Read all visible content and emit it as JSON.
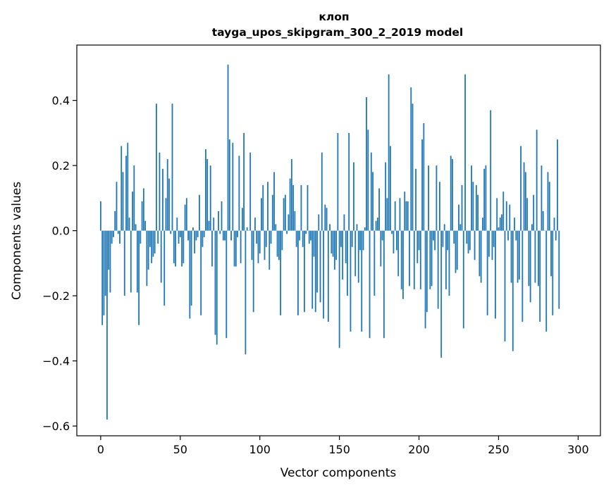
{
  "chart_data": {
    "type": "bar",
    "title": "клоп",
    "subtitle": "tayga_upos_skipgram_300_2_2019 model",
    "xlabel": "Vector components",
    "ylabel": "Components values",
    "xlim": [
      -15,
      314
    ],
    "ylim": [
      -0.63,
      0.57
    ],
    "xticks": [
      0,
      50,
      100,
      150,
      200,
      250,
      300
    ],
    "xtick_labels": [
      "0",
      "50",
      "100",
      "150",
      "200",
      "250",
      "300"
    ],
    "yticks": [
      -0.6,
      -0.4,
      -0.2,
      0.0,
      0.2,
      0.4
    ],
    "ytick_labels": [
      "−0.6",
      "−0.4",
      "−0.2",
      "0.0",
      "0.2",
      "0.4"
    ],
    "bar_color": "#1f77b4",
    "grid": false,
    "values": [
      0.09,
      -0.29,
      -0.26,
      -0.2,
      -0.58,
      -0.12,
      -0.19,
      -0.04,
      -0.02,
      0.06,
      0.15,
      -0.01,
      -0.04,
      0.26,
      0.18,
      -0.2,
      0.23,
      0.27,
      0.04,
      -0.19,
      0.12,
      0.2,
      0.02,
      -0.19,
      -0.29,
      -0.04,
      0.09,
      0.13,
      0.03,
      -0.17,
      -0.12,
      -0.05,
      -0.1,
      -0.08,
      -0.07,
      0.39,
      -0.04,
      0.24,
      -0.16,
      0.19,
      -0.23,
      0.1,
      0.22,
      0.16,
      -0.01,
      0.39,
      -0.1,
      -0.11,
      0.04,
      -0.04,
      -0.02,
      -0.11,
      -0.1,
      0.08,
      0.1,
      -0.03,
      -0.27,
      -0.23,
      0.01,
      -0.07,
      -0.03,
      -0.02,
      0.11,
      -0.26,
      -0.05,
      -0.02,
      0.25,
      0.22,
      0.03,
      0.2,
      -0.11,
      0.04,
      -0.32,
      -0.35,
      0.06,
      -0.01,
      0.09,
      -0.03,
      -0.03,
      -0.33,
      0.51,
      0.28,
      -0.03,
      0.27,
      -0.11,
      -0.11,
      -0.02,
      0.23,
      -0.1,
      0.07,
      0.3,
      -0.38,
      0.01,
      0.0,
      0.24,
      -0.09,
      -0.25,
      0.04,
      -0.04,
      -0.1,
      -0.07,
      0.1,
      0.14,
      -0.09,
      -0.05,
      0.15,
      -0.12,
      -0.04,
      0.11,
      0.18,
      0.02,
      -0.08,
      -0.09,
      -0.26,
      -0.06,
      0.1,
      0.11,
      -0.01,
      0.05,
      0.16,
      0.22,
      0.14,
      0.06,
      -0.05,
      -0.26,
      -0.03,
      0.14,
      -0.05,
      -0.25,
      -0.01,
      0.14,
      -0.04,
      -0.03,
      -0.24,
      -0.08,
      -0.25,
      -0.19,
      0.05,
      -0.22,
      0.24,
      -0.27,
      0.08,
      0.07,
      -0.28,
      0.02,
      -0.07,
      -0.08,
      -0.12,
      -0.09,
      0.3,
      -0.36,
      -0.05,
      -0.15,
      0.05,
      -0.1,
      -0.2,
      0.3,
      -0.31,
      -0.05,
      0.21,
      -0.14,
      0.02,
      -0.16,
      -0.06,
      -0.31,
      -0.06,
      0.01,
      0.41,
      0.31,
      -0.33,
      0.24,
      0.18,
      -0.2,
      0.03,
      0.04,
      0.13,
      -0.11,
      -0.03,
      -0.33,
      0.21,
      0.1,
      0.48,
      0.26,
      -0.01,
      -0.07,
      0.09,
      -0.06,
      -0.14,
      0.1,
      -0.18,
      -0.21,
      0.12,
      0.09,
      0.09,
      -0.17,
      0.44,
      0.39,
      -0.18,
      0.19,
      -0.1,
      -0.06,
      -0.18,
      0.28,
      0.33,
      -0.3,
      -0.25,
      0.2,
      -0.18,
      -0.17,
      -0.03,
      -0.06,
      0.2,
      -0.24,
      0.15,
      -0.39,
      -0.05,
      0.02,
      -0.18,
      -0.06,
      -0.2,
      0.23,
      0.22,
      -0.04,
      -0.13,
      -0.12,
      0.08,
      0.02,
      0.14,
      -0.3,
      0.48,
      -0.04,
      -0.07,
      -0.06,
      0.2,
      0.15,
      -0.09,
      0.14,
      0.11,
      -0.14,
      -0.16,
      0.04,
      0.19,
      0.2,
      -0.26,
      -0.08,
      0.37,
      -0.09,
      -0.05,
      -0.27,
      0.1,
      0.01,
      0.04,
      0.05,
      0.12,
      -0.34,
      0.09,
      -0.03,
      0.08,
      -0.16,
      -0.37,
      0.04,
      -0.03,
      -0.16,
      -0.15,
      0.26,
      -0.28,
      0.21,
      0.18,
      0.1,
      -0.17,
      -0.22,
      0.02,
      0.11,
      -0.16,
      0.31,
      -0.17,
      -0.28,
      0.2,
      0.06,
      0.0,
      -0.31,
      0.18,
      0.15,
      -0.14,
      -0.26,
      0.04,
      -0.03,
      0.28,
      -0.24
    ]
  }
}
